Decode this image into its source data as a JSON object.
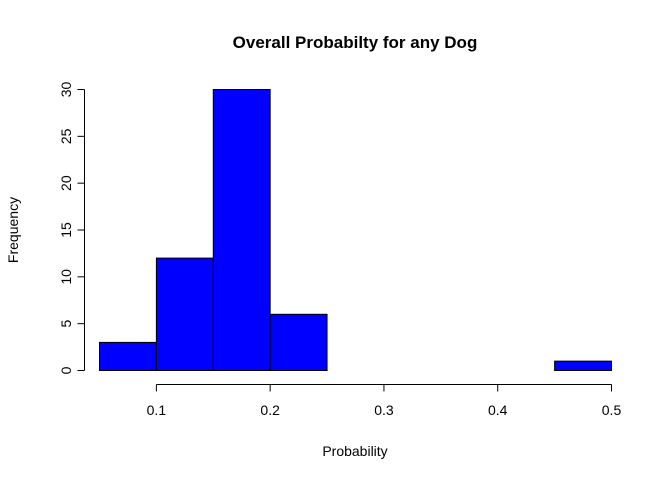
{
  "chart_data": {
    "type": "bar",
    "title": "Overall Probabilty for any Dog",
    "xlabel": "Probability",
    "ylabel": "Frequency",
    "bins": [
      {
        "x0": 0.05,
        "x1": 0.1,
        "count": 3
      },
      {
        "x0": 0.1,
        "x1": 0.15,
        "count": 12
      },
      {
        "x0": 0.15,
        "x1": 0.2,
        "count": 30
      },
      {
        "x0": 0.2,
        "x1": 0.25,
        "count": 6
      },
      {
        "x0": 0.25,
        "x1": 0.3,
        "count": 0
      },
      {
        "x0": 0.3,
        "x1": 0.35,
        "count": 0
      },
      {
        "x0": 0.35,
        "x1": 0.4,
        "count": 0
      },
      {
        "x0": 0.4,
        "x1": 0.45,
        "count": 0
      },
      {
        "x0": 0.45,
        "x1": 0.5,
        "count": 1
      }
    ],
    "xticks": [
      "0.1",
      "0.2",
      "0.3",
      "0.4",
      "0.5"
    ],
    "yticks": [
      "0",
      "5",
      "10",
      "15",
      "20",
      "25",
      "30"
    ],
    "xlim": [
      0.05,
      0.5
    ],
    "ylim": [
      0,
      30
    ],
    "bar_color": "#0000ff",
    "edge_color": "#000000",
    "grid": false
  }
}
